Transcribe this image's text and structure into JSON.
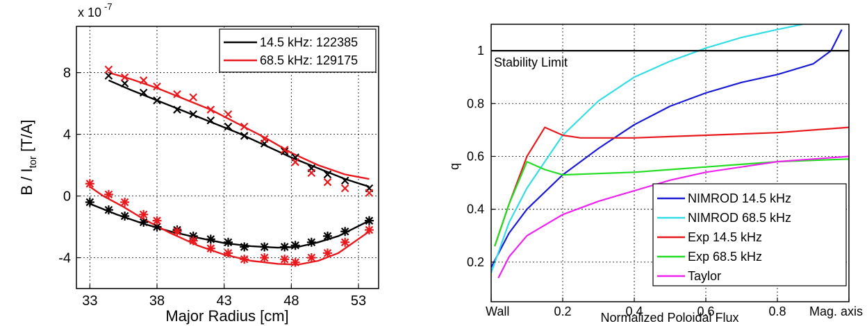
{
  "chart_data": [
    {
      "type": "line",
      "xlabel": "Major Radius [cm]",
      "ylabel": "B / I_tor [T/A]",
      "ylabel_parts": {
        "pre": "B / I",
        "sub": "tor",
        "post": " [T/A]"
      },
      "y_multiplier": "x 10",
      "y_exponent": "-7",
      "xlim": [
        32,
        54.5
      ],
      "ylim": [
        -6,
        11
      ],
      "xticks": [
        33,
        38,
        43,
        48,
        53
      ],
      "yticks": [
        -4,
        0,
        4,
        8
      ],
      "grid": true,
      "legend_position": "top-right",
      "legend": [
        {
          "label": "14.5 kHz: 122385",
          "color": "#000000"
        },
        {
          "label": "68.5 kHz: 129175",
          "color": "#e8191d"
        }
      ],
      "lines": [
        {
          "color": "#000000",
          "x": [
            34.4,
            36,
            38,
            40,
            42,
            44,
            46,
            48,
            50,
            52,
            53.8
          ],
          "y": [
            7.5,
            6.9,
            6.2,
            5.5,
            4.8,
            4.1,
            3.3,
            2.5,
            1.8,
            1.1,
            0.6
          ]
        },
        {
          "color": "#e8191d",
          "x": [
            34.4,
            36,
            38,
            40,
            42,
            44,
            46,
            48,
            50,
            52,
            53.8
          ],
          "y": [
            8.0,
            7.6,
            7.0,
            6.3,
            5.6,
            4.7,
            3.8,
            2.8,
            2.0,
            1.4,
            1.1
          ]
        },
        {
          "color": "#000000",
          "x": [
            33,
            35,
            37,
            39,
            41,
            43,
            45,
            47,
            48.5,
            50,
            51.5,
            53.8
          ],
          "y": [
            -0.5,
            -1.2,
            -1.8,
            -2.3,
            -2.7,
            -3.05,
            -3.25,
            -3.35,
            -3.3,
            -3.0,
            -2.6,
            -1.6
          ]
        },
        {
          "color": "#e8191d",
          "x": [
            33,
            34,
            35.5,
            37,
            39,
            41,
            43,
            45,
            47,
            48.5,
            50,
            51.5,
            53.8
          ],
          "y": [
            0.6,
            0.0,
            -0.7,
            -1.5,
            -2.4,
            -3.2,
            -3.8,
            -4.2,
            -4.4,
            -4.45,
            -4.2,
            -3.7,
            -2.3
          ]
        }
      ],
      "markers": [
        {
          "symbol": "x",
          "color": "#000000",
          "x": [
            34.4,
            35.6,
            37,
            38,
            39.5,
            40.7,
            42,
            43.3,
            44.5,
            46,
            47.5,
            48.3,
            49.5,
            50.7,
            52,
            53.8
          ],
          "y": [
            7.8,
            7.3,
            6.7,
            6.2,
            5.6,
            5.3,
            4.9,
            4.5,
            3.9,
            3.4,
            2.9,
            2.5,
            1.8,
            1.4,
            1.0,
            0.5
          ]
        },
        {
          "symbol": "x",
          "color": "#e8191d",
          "x": [
            34.4,
            35.6,
            37,
            38,
            39.5,
            40.7,
            42,
            43.3,
            44.5,
            46,
            47.5,
            48.3,
            49.5,
            50.7,
            52,
            53.8
          ],
          "y": [
            8.2,
            7.7,
            7.5,
            7.1,
            6.6,
            6.4,
            5.6,
            5.3,
            4.5,
            3.7,
            3.0,
            2.2,
            1.5,
            0.9,
            0.5,
            0.2
          ]
        },
        {
          "symbol": "asterisk",
          "color": "#000000",
          "x": [
            33,
            34.4,
            35.6,
            37,
            38,
            39.5,
            40.7,
            42,
            43.3,
            44.5,
            46,
            47.5,
            48.3,
            49.5,
            50.7,
            52,
            53.8
          ],
          "y": [
            -0.4,
            -0.9,
            -1.3,
            -1.7,
            -2.0,
            -2.2,
            -2.6,
            -2.8,
            -3.0,
            -3.3,
            -3.3,
            -3.3,
            -3.2,
            -3.0,
            -2.6,
            -2.3,
            -1.6
          ]
        },
        {
          "symbol": "asterisk",
          "color": "#e8191d",
          "x": [
            33,
            34.4,
            35.6,
            37,
            38,
            39.5,
            40.7,
            42,
            43.3,
            44.5,
            46,
            47.5,
            48.3,
            49.5,
            50.7,
            52,
            53.8
          ],
          "y": [
            0.8,
            0.1,
            -0.4,
            -1.2,
            -1.6,
            -2.3,
            -2.9,
            -3.4,
            -3.7,
            -4.1,
            -4.0,
            -4.1,
            -4.3,
            -4.0,
            -3.7,
            -3.0,
            -2.2
          ]
        }
      ]
    },
    {
      "type": "line",
      "xlabel": "Normalized Poloidal Flux",
      "ylabel": "q",
      "xlim": [
        0,
        1
      ],
      "ylim": [
        0.05,
        1.1
      ],
      "xticks": [
        0,
        0.2,
        0.4,
        0.6,
        0.8,
        1
      ],
      "xtick_labels": [
        "Wall",
        "0.2",
        "0.4",
        "0.6",
        "0.8",
        "Mag. axis"
      ],
      "yticks": [
        0.2,
        0.4,
        0.6,
        0.8,
        1
      ],
      "grid": true,
      "legend_position": "bottom-right",
      "annotation": "Stability Limit",
      "reference_line": {
        "y": 1.0,
        "color": "#000000"
      },
      "series": [
        {
          "name": "NIMROD 14.5 kHz",
          "color": "#1a1ad6",
          "x": [
            0,
            0.05,
            0.1,
            0.2,
            0.3,
            0.4,
            0.5,
            0.6,
            0.7,
            0.8,
            0.9,
            0.95,
            0.98
          ],
          "y": [
            0.18,
            0.31,
            0.4,
            0.53,
            0.63,
            0.72,
            0.79,
            0.84,
            0.88,
            0.91,
            0.95,
            1.0,
            1.08
          ]
        },
        {
          "name": "NIMROD 68.5 kHz",
          "color": "#33dde6",
          "x": [
            0,
            0.05,
            0.1,
            0.2,
            0.3,
            0.4,
            0.5,
            0.6,
            0.7,
            0.8,
            0.87
          ],
          "y": [
            0.16,
            0.35,
            0.48,
            0.68,
            0.81,
            0.9,
            0.96,
            1.01,
            1.05,
            1.08,
            1.1
          ]
        },
        {
          "name": "Exp 14.5 kHz",
          "color": "#e8191d",
          "x": [
            0.01,
            0.05,
            0.1,
            0.15,
            0.2,
            0.25,
            0.3,
            0.4,
            0.5,
            0.6,
            0.7,
            0.8,
            0.9,
            1.0
          ],
          "y": [
            0.26,
            0.42,
            0.6,
            0.71,
            0.68,
            0.67,
            0.67,
            0.67,
            0.675,
            0.68,
            0.685,
            0.69,
            0.7,
            0.71
          ]
        },
        {
          "name": "Exp 68.5 kHz",
          "color": "#22dd22",
          "x": [
            0.01,
            0.05,
            0.1,
            0.15,
            0.2,
            0.3,
            0.4,
            0.5,
            0.6,
            0.7,
            0.8,
            0.9,
            1.0
          ],
          "y": [
            0.26,
            0.42,
            0.58,
            0.55,
            0.53,
            0.535,
            0.54,
            0.55,
            0.56,
            0.57,
            0.58,
            0.585,
            0.59
          ]
        },
        {
          "name": "Taylor",
          "color": "#ee22ee",
          "x": [
            0.02,
            0.05,
            0.1,
            0.2,
            0.3,
            0.4,
            0.5,
            0.6,
            0.7,
            0.8,
            0.9,
            1.0
          ],
          "y": [
            0.14,
            0.22,
            0.3,
            0.38,
            0.43,
            0.47,
            0.51,
            0.54,
            0.56,
            0.58,
            0.59,
            0.6
          ]
        }
      ]
    }
  ]
}
